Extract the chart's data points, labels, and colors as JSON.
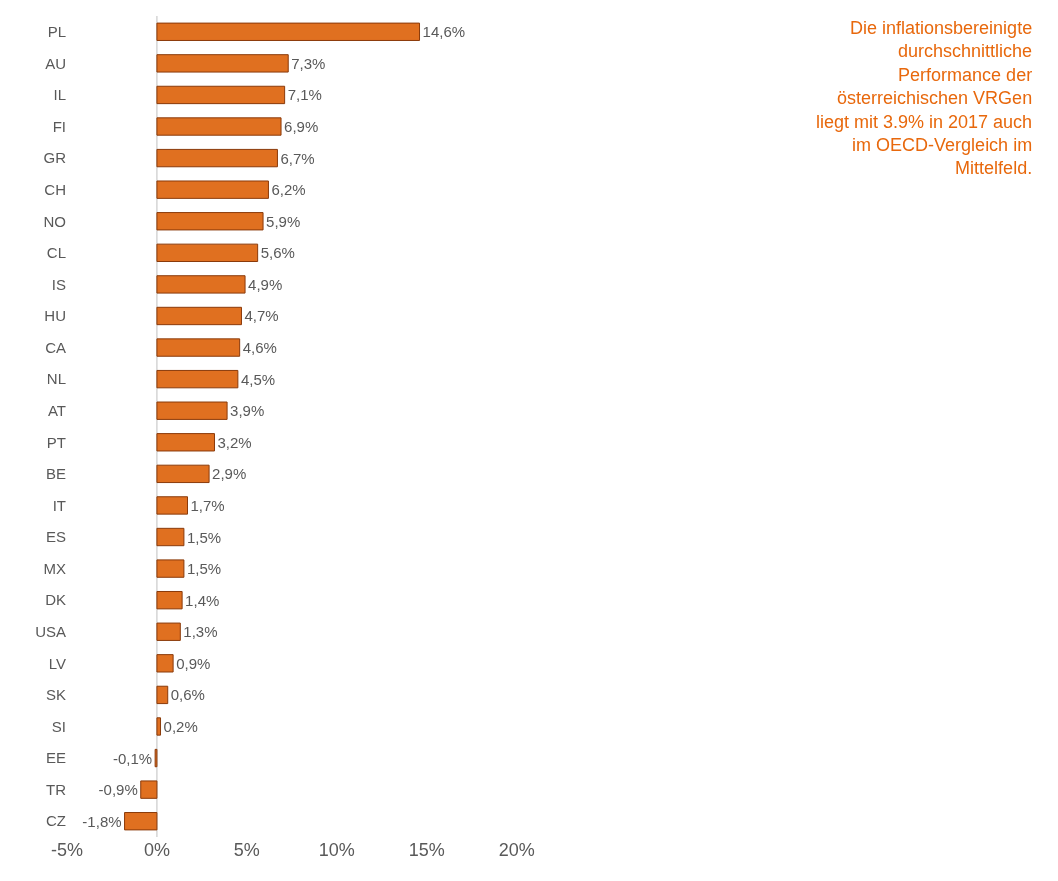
{
  "chart_data": {
    "type": "bar",
    "orientation": "horizontal",
    "categories": [
      "PL",
      "AU",
      "IL",
      "FI",
      "GR",
      "CH",
      "NO",
      "CL",
      "IS",
      "HU",
      "CA",
      "NL",
      "AT",
      "PT",
      "BE",
      "IT",
      "ES",
      "MX",
      "DK",
      "USA",
      "LV",
      "SK",
      "SI",
      "EE",
      "TR",
      "CZ"
    ],
    "values": [
      14.6,
      7.3,
      7.1,
      6.9,
      6.7,
      6.2,
      5.9,
      5.6,
      4.9,
      4.7,
      4.6,
      4.5,
      3.9,
      3.2,
      2.9,
      1.7,
      1.5,
      1.5,
      1.4,
      1.3,
      0.9,
      0.6,
      0.2,
      -0.1,
      -0.9,
      -1.8
    ],
    "value_labels": [
      "14,6%",
      "7,3%",
      "7,1%",
      "6,9%",
      "6,7%",
      "6,2%",
      "5,9%",
      "5,6%",
      "4,9%",
      "4,7%",
      "4,6%",
      "4,5%",
      "3,9%",
      "3,2%",
      "2,9%",
      "1,7%",
      "1,5%",
      "1,5%",
      "1,4%",
      "1,3%",
      "0,9%",
      "0,6%",
      "0,2%",
      "-0,1%",
      "-0,9%",
      "-1,8%"
    ],
    "color": "#e07020",
    "xlim": [
      -5,
      20
    ],
    "xticks": [
      {
        "value": -5,
        "label": "-5%"
      },
      {
        "value": 0,
        "label": "0%"
      },
      {
        "value": 5,
        "label": "5%"
      },
      {
        "value": 10,
        "label": "10%"
      },
      {
        "value": 15,
        "label": "15%"
      },
      {
        "value": 20,
        "label": "20%"
      }
    ],
    "grid": false,
    "legend": false,
    "ref_lines": [
      {
        "axis": "x",
        "value": 0,
        "color": "#bfbfbf"
      }
    ],
    "annotations": [
      "Die inflationsbereinigte\ndurchschnittliche\nPerformance der\nösterreichischen VRGen\nliegt mit 3.9% in 2017 auch\nim OECD-Vergleich im\nMittelfeld."
    ]
  }
}
